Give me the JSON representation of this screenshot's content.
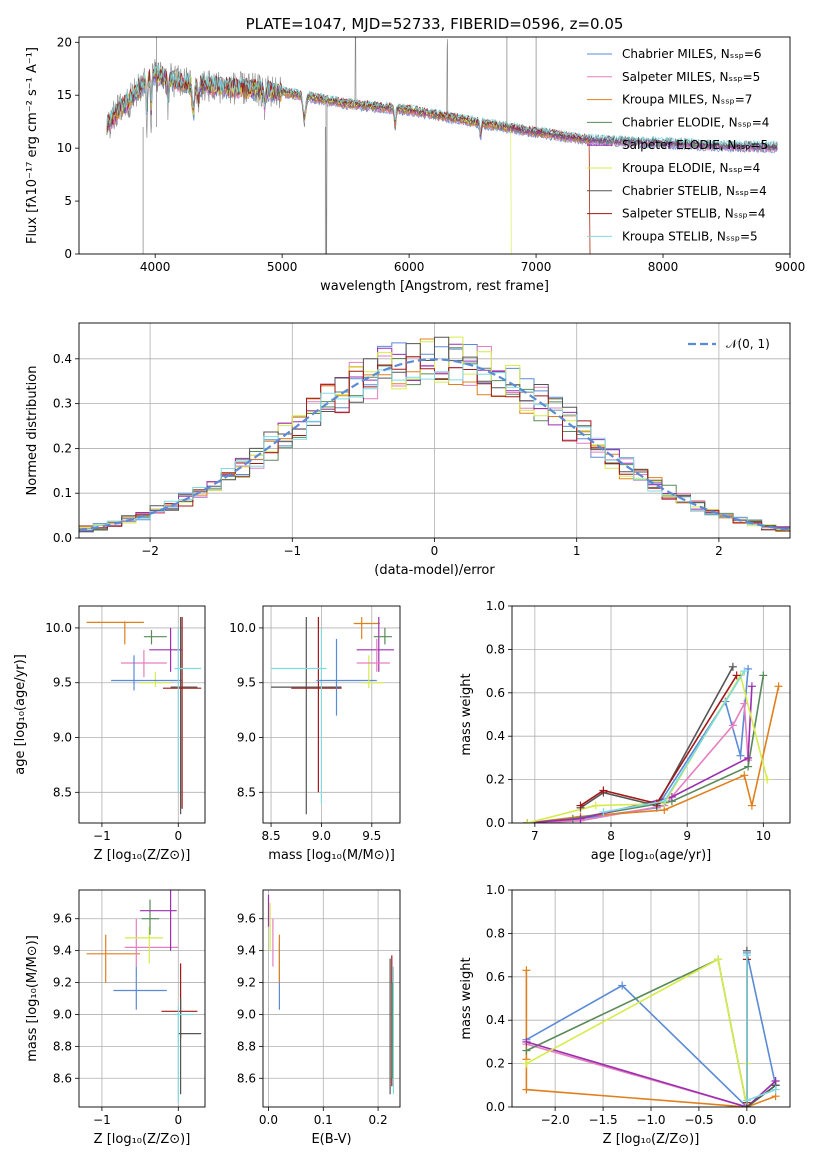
{
  "colors": {
    "chabrier_miles": "#5b8bd6",
    "salpeter_miles": "#e67fbf",
    "kroupa_miles": "#e0801c",
    "chabrier_elodie": "#5a8a5a",
    "salpeter_elodie": "#9b2fb0",
    "kroupa_elodie": "#d6ec4a",
    "chabrier_stelib": "#555555",
    "salpeter_stelib": "#a31818",
    "kroupa_stelib": "#7fdbe0"
  },
  "chart_data": [
    {
      "id": "spectrum",
      "type": "line",
      "title": "PLATE=1047, MJD=52733, FIBERID=0596, z=0.05",
      "xlabel": "wavelength [Angstrom, rest frame]",
      "ylabel": "Flux [fλ10⁻¹⁷ erg cm⁻² s⁻¹ A⁻¹]",
      "xlim": [
        3400,
        9000
      ],
      "ylim": [
        0,
        20.5
      ],
      "xticks": [
        "4000",
        "5000",
        "6000",
        "7000",
        "8000",
        "9000"
      ],
      "yticks": [
        "0",
        "5",
        "10",
        "15",
        "20"
      ],
      "legend_position": "upper right",
      "legend": [
        "Chabrier MILES, Nₛₛₚ=6",
        "Salpeter MILES, Nₛₛₚ=5",
        "Kroupa MILES, Nₛₛₚ=7",
        "Chabrier ELODIE, Nₛₛₚ=4",
        "Salpeter ELODIE, Nₛₛₚ=5",
        "Kroupa ELODIE, Nₛₛₚ=4",
        "Chabrier STELIB, Nₛₛₚ=4",
        "Salpeter STELIB, Nₛₛₚ=4",
        "Kroupa STELIB, Nₛₛₚ=5"
      ],
      "data_envelope": {
        "x": [
          3620,
          3700,
          3800,
          3900,
          4000,
          4100,
          4300,
          4500,
          5000,
          5500,
          6000,
          6500,
          7000,
          7400,
          8000,
          8500,
          8900
        ],
        "y": [
          12.0,
          13.5,
          14.5,
          16.0,
          17.0,
          16.5,
          16.0,
          15.8,
          15.3,
          14.2,
          13.6,
          12.5,
          11.5,
          10.8,
          10.5,
          10.2,
          10.1
        ]
      }
    },
    {
      "id": "residuals",
      "type": "bar",
      "xlabel": "(data-model)/error",
      "ylabel": "Normed distribution",
      "xlim": [
        -2.5,
        2.5
      ],
      "ylim": [
        0,
        0.48
      ],
      "xticks": [
        "−2",
        "−1",
        "0",
        "1",
        "2"
      ],
      "yticks": [
        "0.0",
        "0.1",
        "0.2",
        "0.3",
        "0.4"
      ],
      "legend": [
        "𝒩(0, 1)"
      ],
      "legend_position": "upper right",
      "grid": true
    },
    {
      "id": "age_vs_z",
      "type": "scatter",
      "xlabel": "Z [log₁₀(Z/Z⊙)]",
      "ylabel": "age  [log₁₀(age/yr)]",
      "xlim": [
        -1.3,
        0.35
      ],
      "ylim": [
        8.22,
        10.2
      ],
      "xticks": [
        "−1",
        "0"
      ],
      "yticks": [
        "8.5",
        "9.0",
        "9.5",
        "10.0"
      ]
    },
    {
      "id": "age_vs_mass",
      "type": "scatter",
      "xlabel": "mass [log₁₀(M/M⊙)]",
      "xlim": [
        8.42,
        9.78
      ],
      "ylim": [
        8.22,
        10.2
      ],
      "xticks": [
        "8.5",
        "9.0",
        "9.5"
      ],
      "yticks": [
        "8.5",
        "9.0",
        "9.5",
        "10.0"
      ]
    },
    {
      "id": "weight_vs_age",
      "type": "line",
      "xlabel": "age  [log₁₀(age/yr)]",
      "ylabel": "mass weight",
      "xlim": [
        6.7,
        10.35
      ],
      "ylim": [
        0,
        1.0
      ],
      "xticks": [
        "7",
        "8",
        "9",
        "10"
      ],
      "yticks": [
        "0.0",
        "0.2",
        "0.4",
        "0.6",
        "0.8",
        "1.0"
      ]
    },
    {
      "id": "mass_vs_z",
      "type": "scatter",
      "xlabel": "Z [log₁₀(Z/Z⊙)]",
      "ylabel": "mass [log₁₀(M/M⊙)]",
      "xlim": [
        -1.3,
        0.35
      ],
      "ylim": [
        8.42,
        9.78
      ],
      "xticks": [
        "−1",
        "0"
      ],
      "yticks": [
        "8.6",
        "8.8",
        "9.0",
        "9.2",
        "9.4",
        "9.6"
      ]
    },
    {
      "id": "mass_vs_ebv",
      "type": "scatter",
      "xlabel": "E(B-V)",
      "xlim": [
        -0.01,
        0.24
      ],
      "ylim": [
        8.42,
        9.78
      ],
      "xticks": [
        "0.0",
        "0.1",
        "0.2"
      ],
      "yticks": [
        "8.6",
        "8.8",
        "9.0",
        "9.2",
        "9.4",
        "9.6"
      ]
    },
    {
      "id": "weight_vs_z",
      "type": "line",
      "xlabel": "Z [log₁₀(Z/Z⊙)]",
      "ylabel": "mass weight",
      "xlim": [
        -2.45,
        0.45
      ],
      "ylim": [
        0,
        1.0
      ],
      "xticks": [
        "−2.0",
        "−1.5",
        "−1.0",
        "−0.5",
        "0.0"
      ],
      "yticks": [
        "0.0",
        "0.2",
        "0.4",
        "0.6",
        "0.8",
        "1.0"
      ]
    }
  ]
}
